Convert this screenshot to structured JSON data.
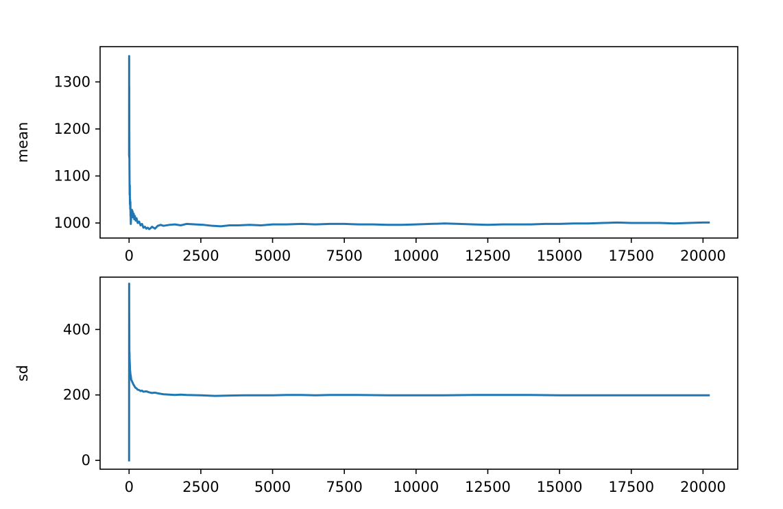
{
  "chart_data": [
    {
      "type": "line",
      "ylabel": "mean",
      "xlabel": "",
      "title": "",
      "xlim": [
        -1010,
        21210
      ],
      "ylim": [
        968,
        1375
      ],
      "xticks": [
        0,
        2500,
        5000,
        7500,
        10000,
        12500,
        15000,
        17500,
        20000
      ],
      "xtick_labels": [
        "0",
        "2500",
        "5000",
        "7500",
        "10000",
        "12500",
        "15000",
        "17500",
        "20000"
      ],
      "yticks": [
        1000,
        1100,
        1200,
        1300
      ],
      "ytick_labels": [
        "1000",
        "1100",
        "1200",
        "1300"
      ],
      "series": [
        {
          "name": "mean",
          "color": "#1f77b4",
          "x": [
            0,
            2,
            4,
            6,
            8,
            10,
            13,
            16,
            20,
            25,
            30,
            35,
            40,
            45,
            50,
            55,
            60,
            70,
            80,
            90,
            100,
            110,
            120,
            140,
            160,
            180,
            200,
            230,
            260,
            300,
            350,
            400,
            450,
            500,
            550,
            600,
            650,
            700,
            750,
            800,
            900,
            1000,
            1100,
            1200,
            1400,
            1600,
            1800,
            2000,
            2300,
            2600,
            2900,
            3200,
            3500,
            3800,
            4200,
            4600,
            5000,
            5500,
            6000,
            6500,
            7000,
            7500,
            8000,
            8500,
            9000,
            9500,
            10000,
            10500,
            11000,
            11500,
            12000,
            12500,
            13000,
            13500,
            14000,
            14500,
            15000,
            15500,
            16000,
            16500,
            17000,
            17500,
            18000,
            18500,
            19000,
            19500,
            20000,
            20200
          ],
          "y": [
            1145,
            1355,
            1140,
            1290,
            1200,
            1160,
            1120,
            1095,
            1060,
            1080,
            1040,
            1050,
            1030,
            1045,
            1015,
            1020,
            998,
            1010,
            1015,
            1022,
            1028,
            1018,
            1025,
            1012,
            1020,
            1008,
            1015,
            1005,
            1010,
            1000,
            1003,
            995,
            998,
            990,
            992,
            988,
            990,
            987,
            989,
            992,
            988,
            994,
            996,
            994,
            996,
            997,
            995,
            998,
            997,
            996,
            994,
            993,
            995,
            995,
            996,
            995,
            997,
            997,
            998,
            997,
            998,
            998,
            997,
            997,
            996,
            996,
            997,
            998,
            999,
            998,
            997,
            996,
            997,
            997,
            997,
            998,
            998,
            999,
            999,
            1000,
            1001,
            1000,
            1000,
            1000,
            999,
            1000,
            1001,
            1001
          ]
        }
      ]
    },
    {
      "type": "line",
      "ylabel": "sd",
      "xlabel": "",
      "title": "",
      "xlim": [
        -1010,
        21210
      ],
      "ylim": [
        -27,
        560
      ],
      "xticks": [
        0,
        2500,
        5000,
        7500,
        10000,
        12500,
        15000,
        17500,
        20000
      ],
      "xtick_labels": [
        "0",
        "2500",
        "5000",
        "7500",
        "10000",
        "12500",
        "15000",
        "17500",
        "20000"
      ],
      "yticks": [
        0,
        200,
        400
      ],
      "ytick_labels": [
        "0",
        "200",
        "400"
      ],
      "series": [
        {
          "name": "sd",
          "color": "#1f77b4",
          "x": [
            0,
            2,
            4,
            6,
            8,
            10,
            14,
            18,
            22,
            26,
            30,
            35,
            40,
            50,
            60,
            70,
            80,
            100,
            120,
            150,
            180,
            220,
            260,
            300,
            350,
            400,
            450,
            500,
            600,
            700,
            800,
            900,
            1000,
            1200,
            1400,
            1600,
            1800,
            2000,
            2500,
            3000,
            3500,
            4000,
            4500,
            5000,
            5500,
            6000,
            6500,
            7000,
            7500,
            8000,
            9000,
            10000,
            11000,
            12000,
            13000,
            14000,
            15000,
            16000,
            17000,
            18000,
            19000,
            20000,
            20200
          ],
          "y": [
            0,
            540,
            450,
            420,
            380,
            330,
            330,
            310,
            300,
            295,
            280,
            275,
            270,
            262,
            258,
            250,
            245,
            242,
            238,
            232,
            228,
            222,
            220,
            216,
            215,
            212,
            213,
            210,
            211,
            208,
            206,
            207,
            205,
            202,
            201,
            200,
            201,
            200,
            199,
            197,
            198,
            199,
            199,
            199,
            200,
            200,
            199,
            200,
            200,
            200,
            199,
            199,
            199,
            200,
            200,
            200,
            199,
            199,
            199,
            199,
            199,
            199,
            199
          ]
        }
      ]
    }
  ]
}
